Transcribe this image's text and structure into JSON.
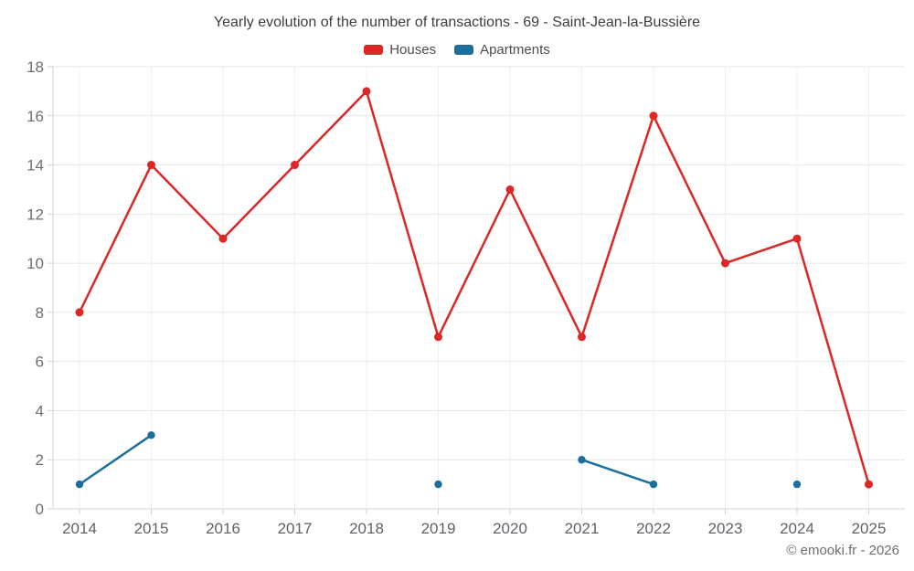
{
  "header": {
    "title": "Yearly evolution of the number of transactions - 69 - Saint-Jean-la-Bussière"
  },
  "legend": [
    {
      "label": "Houses",
      "color": "#dc2727"
    },
    {
      "label": "Apartments",
      "color": "#1a6f9e"
    }
  ],
  "footer": {
    "copyright": "© emooki.fr - 2026"
  },
  "chart_data": {
    "type": "line",
    "title": "Yearly evolution of the number of transactions - 69 - Saint-Jean-la-Bussière",
    "x": [
      "2014",
      "2015",
      "2016",
      "2017",
      "2018",
      "2019",
      "2020",
      "2021",
      "2022",
      "2023",
      "2024",
      "2025"
    ],
    "series": [
      {
        "name": "Houses",
        "color": "#dc2727",
        "values": [
          8,
          14,
          11,
          14,
          17,
          7,
          13,
          7,
          16,
          10,
          11,
          1
        ]
      },
      {
        "name": "Apartments",
        "color": "#1a6f9e",
        "values": [
          1,
          3,
          null,
          null,
          null,
          1,
          null,
          2,
          1,
          null,
          1,
          null
        ]
      }
    ],
    "ylim": [
      0,
      18
    ],
    "ytick_step": 2,
    "grid": true,
    "legend_position": "top",
    "xlabel": "",
    "ylabel": ""
  }
}
